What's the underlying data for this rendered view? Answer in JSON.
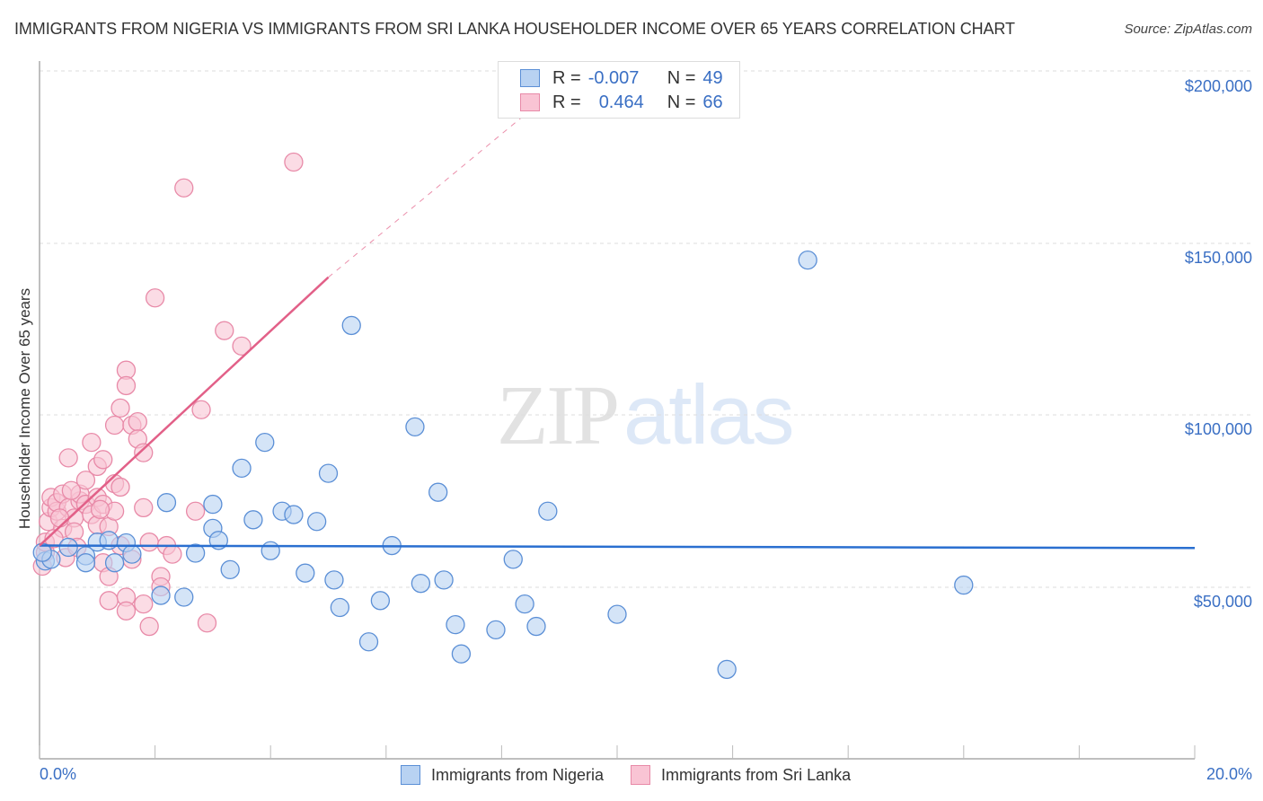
{
  "header": {
    "title": "IMMIGRANTS FROM NIGERIA VS IMMIGRANTS FROM SRI LANKA HOUSEHOLDER INCOME OVER 65 YEARS CORRELATION CHART",
    "source": "Source: ZipAtlas.com"
  },
  "axes": {
    "y_label": "Householder Income Over 65 years",
    "y_ticks": [
      "$200,000",
      "$150,000",
      "$100,000",
      "$50,000"
    ],
    "x_min_label": "0.0%",
    "x_max_label": "20.0%"
  },
  "legend": {
    "series1": {
      "r_label": "R =",
      "r_value": "-0.007",
      "n_label": "N =",
      "n_value": "49"
    },
    "series2": {
      "r_label": "R =",
      "r_value": "0.464",
      "n_label": "N =",
      "n_value": "66"
    }
  },
  "bottom_legend": {
    "series1_name": "Immigrants from Nigeria",
    "series2_name": "Immigrants from Sri Lanka"
  },
  "watermark": {
    "zip": "ZIP",
    "atlas": "atlas"
  },
  "colors": {
    "nigeria_fill": "#b8d2f2",
    "nigeria_stroke": "#5b8fd6",
    "nigeria_line": "#2a6fd0",
    "srilanka_fill": "#f9c4d4",
    "srilanka_stroke": "#e88aa8",
    "srilanka_line": "#e26088",
    "tick_text": "#3a6fc4"
  },
  "chart_data": {
    "type": "scatter",
    "title": "IMMIGRANTS FROM NIGERIA VS IMMIGRANTS FROM SRI LANKA HOUSEHOLDER INCOME OVER 65 YEARS CORRELATION CHART",
    "xlabel": "",
    "ylabel": "Householder Income Over 65 years",
    "xlim": [
      0,
      20
    ],
    "ylim": [
      0,
      205000
    ],
    "x_unit": "%",
    "y_ticks": [
      50000,
      100000,
      150000,
      200000
    ],
    "grid": true,
    "legend_position": "top-center",
    "series": [
      {
        "name": "Immigrants from Nigeria",
        "R": -0.007,
        "N": 49,
        "trend": {
          "x": [
            0,
            20
          ],
          "y": [
            62000,
            61300
          ]
        },
        "points": [
          [
            0.1,
            57500
          ],
          [
            0.2,
            58000
          ],
          [
            0.5,
            61500
          ],
          [
            0.8,
            59000
          ],
          [
            0.8,
            57000
          ],
          [
            1.0,
            63000
          ],
          [
            1.2,
            63500
          ],
          [
            1.3,
            57000
          ],
          [
            1.5,
            62800
          ],
          [
            1.6,
            59500
          ],
          [
            2.1,
            47500
          ],
          [
            2.2,
            74500
          ],
          [
            2.5,
            47000
          ],
          [
            2.7,
            59800
          ],
          [
            3.0,
            74000
          ],
          [
            3.0,
            67000
          ],
          [
            3.1,
            63500
          ],
          [
            3.3,
            55000
          ],
          [
            3.5,
            84500
          ],
          [
            3.7,
            69500
          ],
          [
            3.9,
            92000
          ],
          [
            4.0,
            60500
          ],
          [
            4.2,
            72000
          ],
          [
            4.4,
            71000
          ],
          [
            4.6,
            54000
          ],
          [
            4.8,
            69000
          ],
          [
            5.0,
            83000
          ],
          [
            5.1,
            52000
          ],
          [
            5.2,
            44000
          ],
          [
            5.4,
            126000
          ],
          [
            5.7,
            34000
          ],
          [
            5.9,
            46000
          ],
          [
            6.1,
            62000
          ],
          [
            6.5,
            96500
          ],
          [
            6.6,
            51000
          ],
          [
            6.9,
            77500
          ],
          [
            7.0,
            52000
          ],
          [
            7.2,
            39000
          ],
          [
            7.3,
            30500
          ],
          [
            7.9,
            37500
          ],
          [
            8.2,
            58000
          ],
          [
            8.4,
            45000
          ],
          [
            8.6,
            38500
          ],
          [
            8.8,
            72000
          ],
          [
            10.0,
            42000
          ],
          [
            11.9,
            26000
          ],
          [
            13.3,
            145000
          ],
          [
            16.0,
            50500
          ],
          [
            0.05,
            60000
          ]
        ]
      },
      {
        "name": "Immigrants from Sri Lanka",
        "R": 0.464,
        "N": 66,
        "trend": {
          "x": [
            0,
            5.0
          ],
          "y": [
            62000,
            140000
          ],
          "dashed_extension": {
            "x": [
              5.0,
              8.6
            ],
            "y": [
              140000,
              190000
            ]
          }
        },
        "points": [
          [
            0.05,
            56000
          ],
          [
            0.1,
            60000
          ],
          [
            0.1,
            63000
          ],
          [
            0.15,
            69000
          ],
          [
            0.2,
            73000
          ],
          [
            0.2,
            76000
          ],
          [
            0.3,
            72000
          ],
          [
            0.3,
            74500
          ],
          [
            0.4,
            77000
          ],
          [
            0.4,
            67000
          ],
          [
            0.5,
            87500
          ],
          [
            0.5,
            73000
          ],
          [
            0.6,
            70000
          ],
          [
            0.6,
            66000
          ],
          [
            0.7,
            75000
          ],
          [
            0.7,
            77000
          ],
          [
            0.8,
            81000
          ],
          [
            0.8,
            74000
          ],
          [
            0.9,
            92000
          ],
          [
            0.9,
            71000
          ],
          [
            1.0,
            85000
          ],
          [
            1.0,
            76000
          ],
          [
            1.0,
            68000
          ],
          [
            1.1,
            87000
          ],
          [
            1.1,
            74000
          ],
          [
            1.1,
            57000
          ],
          [
            1.2,
            67500
          ],
          [
            1.2,
            53000
          ],
          [
            1.2,
            46000
          ],
          [
            1.3,
            97000
          ],
          [
            1.3,
            80000
          ],
          [
            1.3,
            72000
          ],
          [
            1.4,
            102000
          ],
          [
            1.4,
            79000
          ],
          [
            1.4,
            62000
          ],
          [
            1.5,
            113000
          ],
          [
            1.5,
            108500
          ],
          [
            1.5,
            47000
          ],
          [
            1.5,
            43000
          ],
          [
            1.6,
            97000
          ],
          [
            1.6,
            58000
          ],
          [
            1.7,
            98000
          ],
          [
            1.7,
            93000
          ],
          [
            1.8,
            89000
          ],
          [
            1.8,
            73000
          ],
          [
            1.8,
            45000
          ],
          [
            1.9,
            63000
          ],
          [
            1.9,
            38500
          ],
          [
            2.0,
            134000
          ],
          [
            2.1,
            53000
          ],
          [
            2.1,
            50000
          ],
          [
            2.2,
            62000
          ],
          [
            2.3,
            59500
          ],
          [
            2.5,
            166000
          ],
          [
            2.7,
            72000
          ],
          [
            2.8,
            101500
          ],
          [
            2.9,
            39500
          ],
          [
            3.2,
            124500
          ],
          [
            3.5,
            120000
          ],
          [
            4.4,
            173500
          ],
          [
            0.25,
            64000
          ],
          [
            0.35,
            70000
          ],
          [
            0.45,
            58500
          ],
          [
            0.55,
            78000
          ],
          [
            0.65,
            61500
          ],
          [
            1.05,
            72500
          ]
        ]
      }
    ]
  }
}
